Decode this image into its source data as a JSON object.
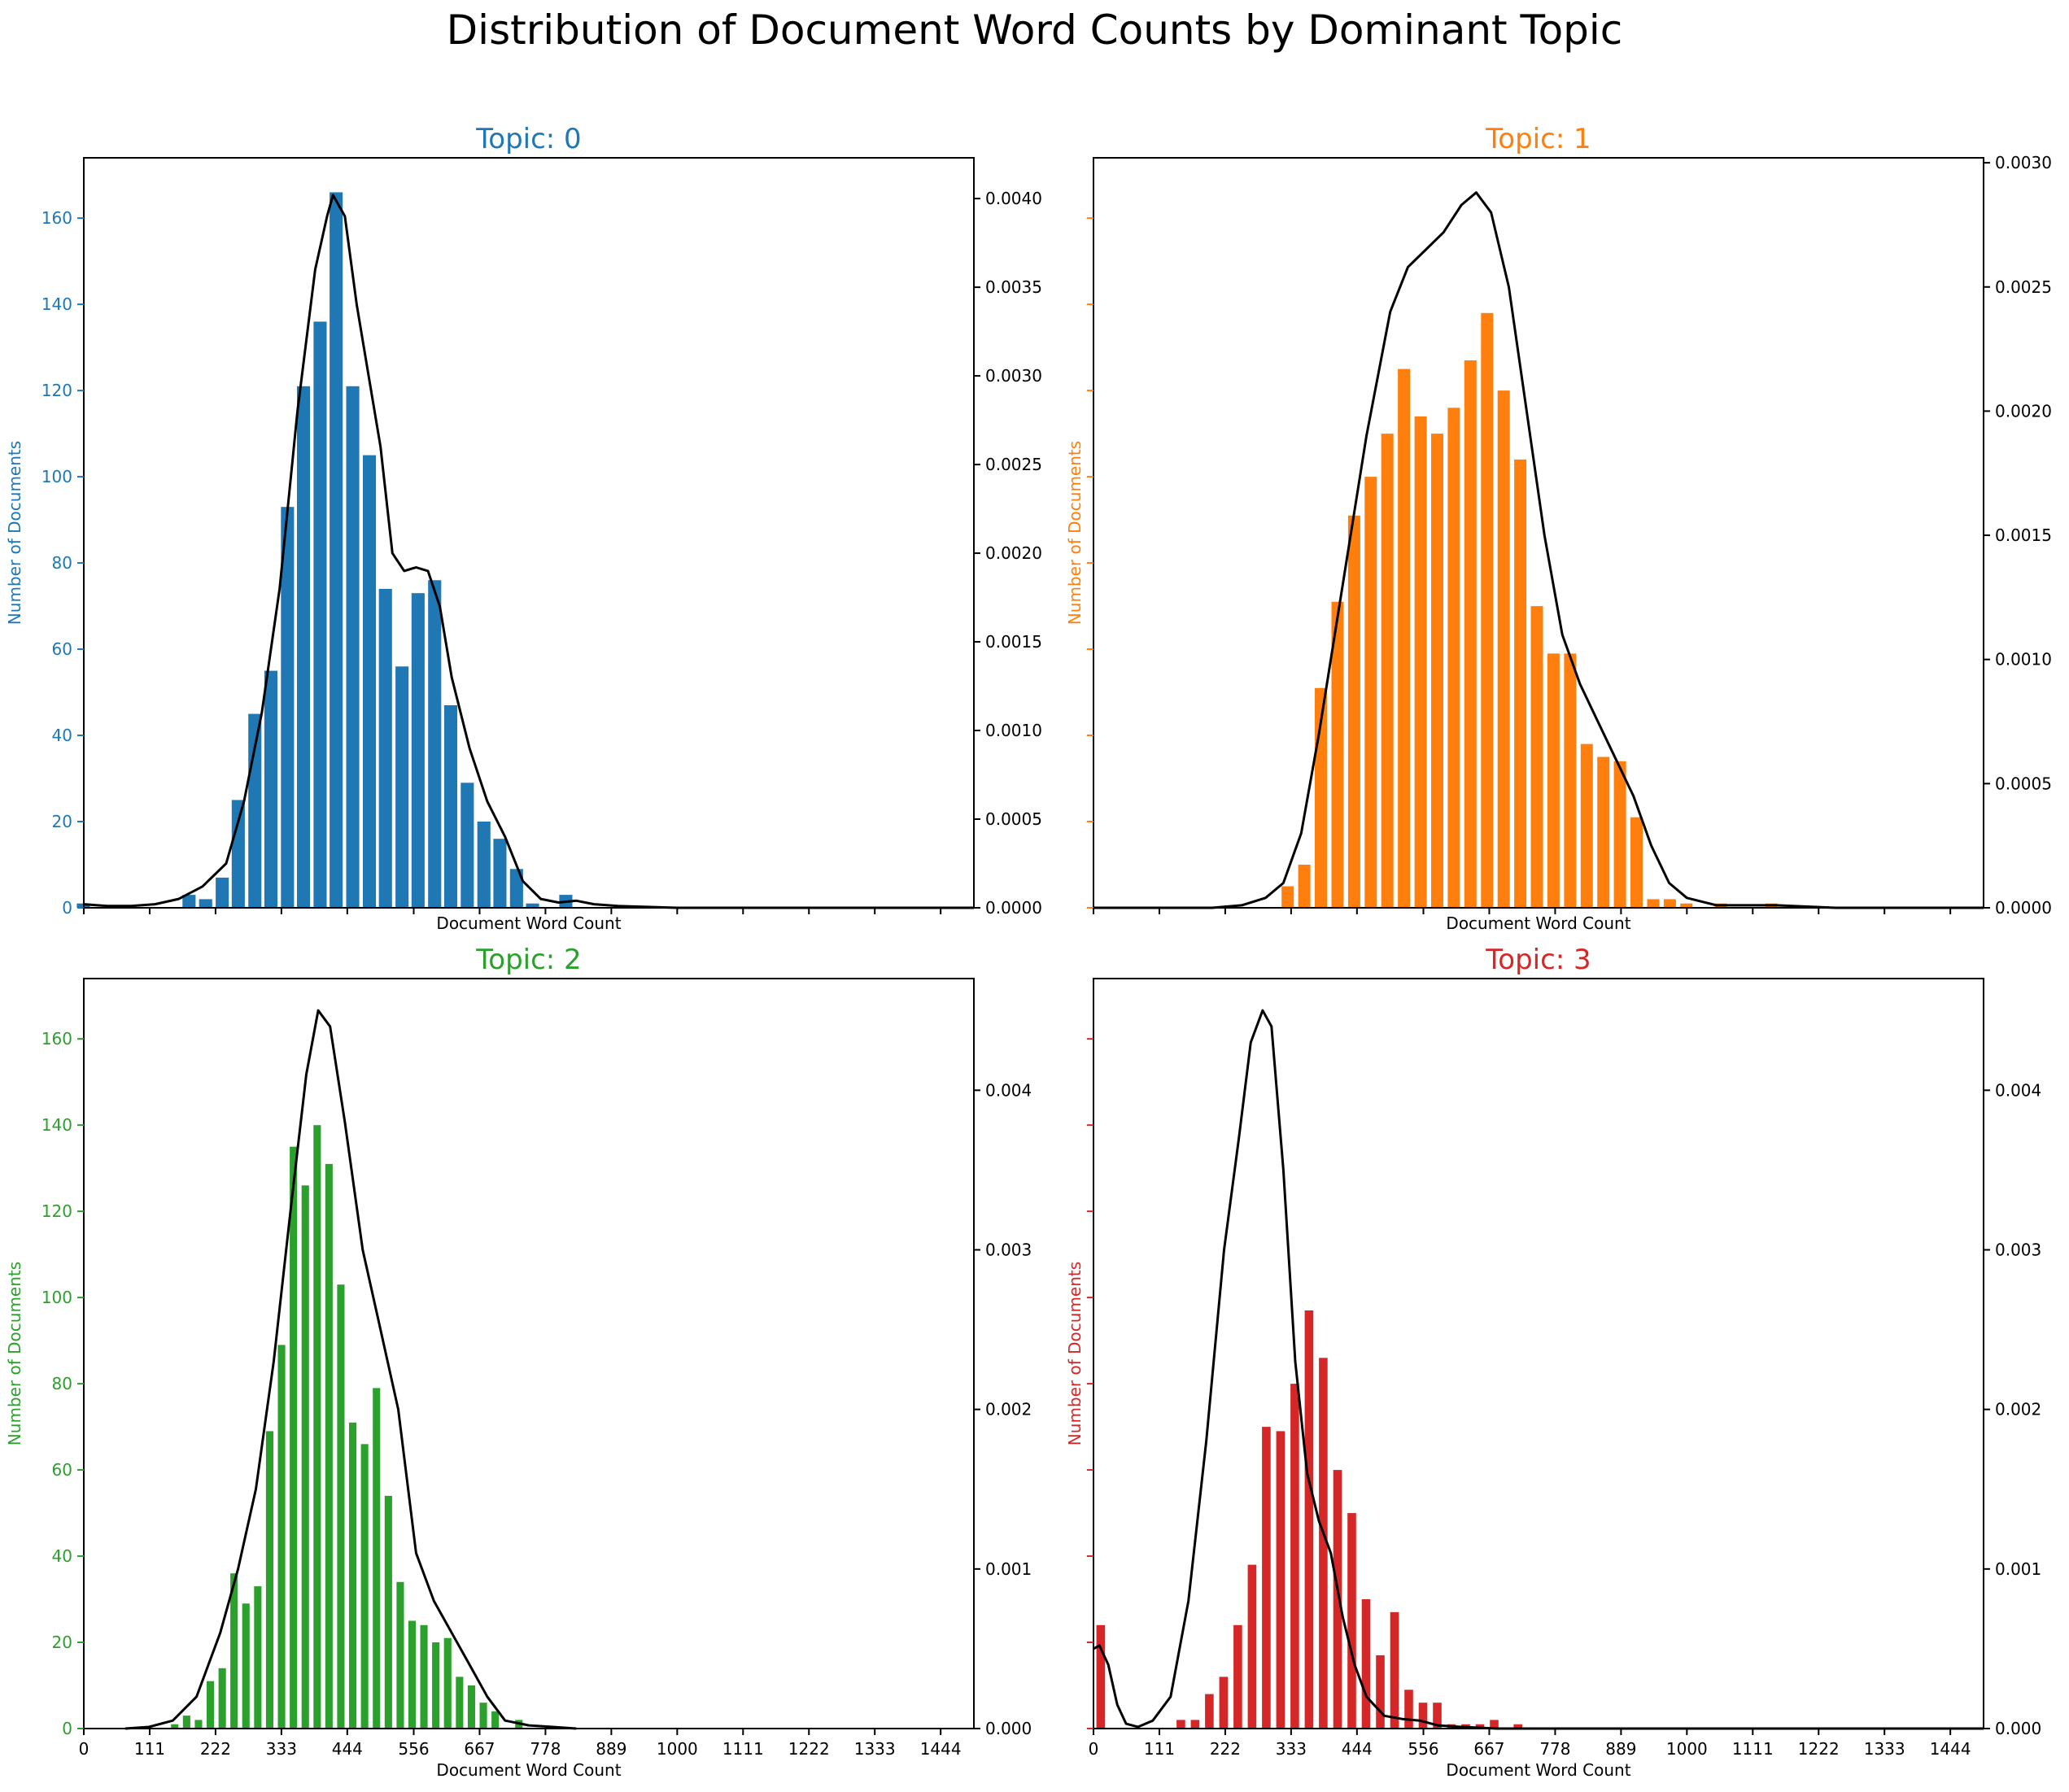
{
  "figure": {
    "suptitle": "Distribution of Document Word Counts by Dominant Topic"
  },
  "chart_data": [
    {
      "type": "bar",
      "title": "Topic: 0",
      "color": "#1f77b4",
      "xlabel": "Document Word Count",
      "ylabel": "Number of Documents",
      "xlim": [
        0,
        1500
      ],
      "ylim": [
        0,
        174
      ],
      "y2lim": [
        0,
        0.00423
      ],
      "xticks": [],
      "yticks": [
        0,
        20,
        40,
        60,
        80,
        100,
        120,
        140,
        160
      ],
      "y2ticks": [
        "0.0000",
        "0.0005",
        "0.0010",
        "0.0015",
        "0.0020",
        "0.0025",
        "0.0030",
        "0.0035",
        "0.0040"
      ],
      "bin_width": 27.5,
      "bins": [
        [
          2,
          1
        ],
        [
          180,
          3
        ],
        [
          208,
          2
        ],
        [
          236,
          7
        ],
        [
          263,
          25
        ],
        [
          291,
          45
        ],
        [
          318,
          55
        ],
        [
          346,
          93
        ],
        [
          373,
          121
        ],
        [
          401,
          136
        ],
        [
          428,
          166
        ],
        [
          456,
          121
        ],
        [
          484,
          105
        ],
        [
          511,
          74
        ],
        [
          539,
          56
        ],
        [
          566,
          73
        ],
        [
          594,
          76
        ],
        [
          621,
          47
        ],
        [
          649,
          29
        ],
        [
          677,
          20
        ],
        [
          704,
          16
        ],
        [
          732,
          9
        ],
        [
          759,
          1
        ],
        [
          815,
          3
        ]
      ],
      "kde_ymax": 0.00402,
      "kde": [
        [
          0,
          2e-05
        ],
        [
          40,
          1e-05
        ],
        [
          80,
          1e-05
        ],
        [
          120,
          2e-05
        ],
        [
          160,
          5e-05
        ],
        [
          200,
          0.00012
        ],
        [
          240,
          0.00025
        ],
        [
          270,
          0.0006
        ],
        [
          300,
          0.0011
        ],
        [
          330,
          0.0018
        ],
        [
          360,
          0.0028
        ],
        [
          390,
          0.0036
        ],
        [
          410,
          0.0039
        ],
        [
          420,
          0.00402
        ],
        [
          440,
          0.0039
        ],
        [
          460,
          0.0034
        ],
        [
          480,
          0.003
        ],
        [
          500,
          0.0026
        ],
        [
          520,
          0.002
        ],
        [
          540,
          0.0019
        ],
        [
          560,
          0.00192
        ],
        [
          580,
          0.0019
        ],
        [
          600,
          0.0017
        ],
        [
          620,
          0.0013
        ],
        [
          650,
          0.0009
        ],
        [
          680,
          0.0006
        ],
        [
          710,
          0.0004
        ],
        [
          740,
          0.00015
        ],
        [
          770,
          5e-05
        ],
        [
          800,
          3e-05
        ],
        [
          830,
          4e-05
        ],
        [
          860,
          2e-05
        ],
        [
          900,
          1e-05
        ],
        [
          1000,
          0
        ],
        [
          1200,
          0
        ],
        [
          1500,
          0
        ]
      ]
    },
    {
      "type": "bar",
      "title": "Topic: 1",
      "color": "#ff7f0e",
      "xlabel": "Document Word Count",
      "ylabel": "Number of Documents",
      "xlim": [
        0,
        1500
      ],
      "ylim": [
        0,
        174
      ],
      "y2lim": [
        0,
        0.00302
      ],
      "xticks": [],
      "yticks": [],
      "y2ticks": [
        "0.0000",
        "0.0005",
        "0.0010",
        "0.0015",
        "0.0020",
        "0.0025",
        "0.0030"
      ],
      "bin_width": 26,
      "bins": [
        [
          330,
          5
        ],
        [
          358,
          10
        ],
        [
          386,
          51
        ],
        [
          414,
          71
        ],
        [
          442,
          91
        ],
        [
          470,
          100
        ],
        [
          498,
          110
        ],
        [
          526,
          125
        ],
        [
          554,
          114
        ],
        [
          582,
          110
        ],
        [
          610,
          116
        ],
        [
          638,
          127
        ],
        [
          666,
          138
        ],
        [
          694,
          120
        ],
        [
          722,
          104
        ],
        [
          750,
          70
        ],
        [
          778,
          59
        ],
        [
          806,
          59
        ],
        [
          834,
          38
        ],
        [
          862,
          35
        ],
        [
          890,
          34
        ],
        [
          918,
          21
        ],
        [
          946,
          2
        ],
        [
          974,
          2
        ],
        [
          1002,
          1
        ],
        [
          1060,
          1
        ],
        [
          1145,
          1
        ]
      ],
      "kde_ymax": 0.00288,
      "kde": [
        [
          0,
          0
        ],
        [
          200,
          0
        ],
        [
          250,
          1e-05
        ],
        [
          290,
          4e-05
        ],
        [
          320,
          0.0001
        ],
        [
          350,
          0.0003
        ],
        [
          380,
          0.0007
        ],
        [
          420,
          0.0013
        ],
        [
          460,
          0.0019
        ],
        [
          500,
          0.0024
        ],
        [
          530,
          0.00258
        ],
        [
          560,
          0.00265
        ],
        [
          590,
          0.00272
        ],
        [
          620,
          0.00283
        ],
        [
          645,
          0.00288
        ],
        [
          670,
          0.0028
        ],
        [
          700,
          0.0025
        ],
        [
          730,
          0.002
        ],
        [
          760,
          0.0015
        ],
        [
          790,
          0.0011
        ],
        [
          820,
          0.0009
        ],
        [
          850,
          0.00075
        ],
        [
          880,
          0.0006
        ],
        [
          910,
          0.00045
        ],
        [
          940,
          0.00025
        ],
        [
          970,
          0.0001
        ],
        [
          1000,
          4e-05
        ],
        [
          1050,
          1e-05
        ],
        [
          1150,
          1e-05
        ],
        [
          1250,
          0
        ],
        [
          1500,
          0
        ]
      ]
    },
    {
      "type": "bar",
      "title": "Topic: 2",
      "color": "#2ca02c",
      "xlabel": "Document Word Count",
      "ylabel": "Number of Documents",
      "xlim": [
        0,
        1500
      ],
      "ylim": [
        0,
        174
      ],
      "y2lim": [
        0,
        0.0047
      ],
      "xticks": [
        0,
        111,
        222,
        333,
        444,
        556,
        667,
        778,
        889,
        1000,
        1111,
        1222,
        1333,
        1444
      ],
      "yticks": [
        0,
        20,
        40,
        60,
        80,
        100,
        120,
        140,
        160
      ],
      "y2ticks": [
        "0.000",
        "0.001",
        "0.002",
        "0.003",
        "0.004"
      ],
      "bin_width": 18,
      "bins": [
        [
          156,
          1
        ],
        [
          176,
          3
        ],
        [
          196,
          2
        ],
        [
          216,
          11
        ],
        [
          236,
          14
        ],
        [
          256,
          36
        ],
        [
          276,
          29
        ],
        [
          296,
          33
        ],
        [
          316,
          69
        ],
        [
          336,
          89
        ],
        [
          356,
          135
        ],
        [
          376,
          126
        ],
        [
          396,
          140
        ],
        [
          416,
          131
        ],
        [
          436,
          103
        ],
        [
          456,
          71
        ],
        [
          476,
          66
        ],
        [
          496,
          79
        ],
        [
          516,
          54
        ],
        [
          536,
          34
        ],
        [
          556,
          25
        ],
        [
          576,
          24
        ],
        [
          596,
          20
        ],
        [
          616,
          21
        ],
        [
          636,
          12
        ],
        [
          656,
          10
        ],
        [
          676,
          6
        ],
        [
          696,
          4
        ],
        [
          736,
          2
        ]
      ],
      "kde_ymax": 0.0045,
      "kde": [
        [
          70,
          0
        ],
        [
          110,
          1e-05
        ],
        [
          150,
          5e-05
        ],
        [
          190,
          0.0002
        ],
        [
          230,
          0.0006
        ],
        [
          260,
          0.001
        ],
        [
          290,
          0.0015
        ],
        [
          320,
          0.0023
        ],
        [
          350,
          0.0033
        ],
        [
          375,
          0.0041
        ],
        [
          395,
          0.0045
        ],
        [
          415,
          0.0044
        ],
        [
          440,
          0.0038
        ],
        [
          470,
          0.003
        ],
        [
          500,
          0.0025
        ],
        [
          530,
          0.002
        ],
        [
          560,
          0.0011
        ],
        [
          590,
          0.0008
        ],
        [
          620,
          0.0006
        ],
        [
          650,
          0.0004
        ],
        [
          680,
          0.0002
        ],
        [
          710,
          5e-05
        ],
        [
          750,
          2e-05
        ],
        [
          790,
          1e-05
        ],
        [
          830,
          0
        ]
      ]
    },
    {
      "type": "bar",
      "title": "Topic: 3",
      "color": "#d62728",
      "xlabel": "Document Word Count",
      "ylabel": "Number of Documents",
      "xlim": [
        0,
        1500
      ],
      "ylim": [
        0,
        174
      ],
      "y2lim": [
        0,
        0.0047
      ],
      "xticks": [
        0,
        111,
        222,
        333,
        444,
        556,
        667,
        778,
        889,
        1000,
        1111,
        1222,
        1333,
        1444
      ],
      "yticks": [],
      "y2ticks": [
        "0.000",
        "0.001",
        "0.002",
        "0.003",
        "0.004"
      ],
      "bin_width": 20,
      "bins": [
        [
          15,
          24
        ],
        [
          150,
          2
        ],
        [
          174,
          2
        ],
        [
          198,
          8
        ],
        [
          222,
          12
        ],
        [
          246,
          24
        ],
        [
          270,
          38
        ],
        [
          294,
          70
        ],
        [
          318,
          69
        ],
        [
          342,
          80
        ],
        [
          366,
          97
        ],
        [
          390,
          86
        ],
        [
          414,
          60
        ],
        [
          438,
          50
        ],
        [
          462,
          30
        ],
        [
          486,
          17
        ],
        [
          510,
          27
        ],
        [
          534,
          9
        ],
        [
          558,
          6
        ],
        [
          582,
          6
        ],
        [
          606,
          1
        ],
        [
          630,
          1
        ],
        [
          654,
          1
        ],
        [
          678,
          2
        ],
        [
          718,
          1
        ]
      ],
      "kde_ymax": 0.0045,
      "kde": [
        [
          0,
          0.0005
        ],
        [
          10,
          0.00052
        ],
        [
          25,
          0.0004
        ],
        [
          40,
          0.00015
        ],
        [
          55,
          3e-05
        ],
        [
          75,
          1e-05
        ],
        [
          100,
          5e-05
        ],
        [
          130,
          0.0002
        ],
        [
          160,
          0.0008
        ],
        [
          190,
          0.0018
        ],
        [
          220,
          0.003
        ],
        [
          245,
          0.0037
        ],
        [
          265,
          0.0043
        ],
        [
          285,
          0.0045
        ],
        [
          300,
          0.0044
        ],
        [
          320,
          0.0035
        ],
        [
          340,
          0.0023
        ],
        [
          360,
          0.0016
        ],
        [
          380,
          0.0013
        ],
        [
          400,
          0.0011
        ],
        [
          420,
          0.0007
        ],
        [
          440,
          0.0004
        ],
        [
          460,
          0.0002
        ],
        [
          490,
          8e-05
        ],
        [
          520,
          6e-05
        ],
        [
          550,
          5e-05
        ],
        [
          580,
          2e-05
        ],
        [
          620,
          1e-05
        ],
        [
          680,
          0
        ],
        [
          780,
          0
        ],
        [
          1500,
          0
        ]
      ]
    }
  ]
}
